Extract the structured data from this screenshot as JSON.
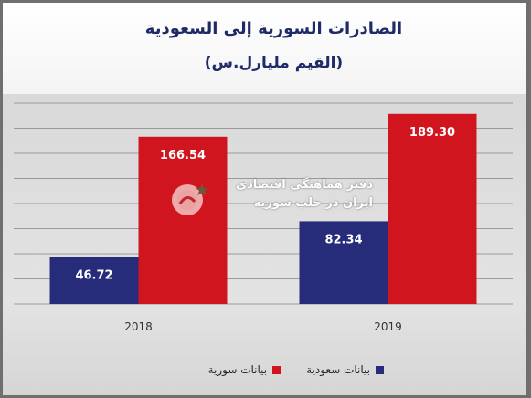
{
  "header": {
    "title": "الصادرات السورية إلى السعودية",
    "subtitle": "(القيم مليارل.س)"
  },
  "watermark": {
    "line1": "دفتر هماهنگی اقتصادی",
    "line2": "ایران در حلب سوریه"
  },
  "colors": {
    "saudi": "#262b7a",
    "syria": "#d0151f",
    "title": "#1f2a68"
  },
  "chart_data": {
    "type": "bar",
    "title": "الصادرات السورية إلى السعودية",
    "subtitle": "(القيم مليارل.س)",
    "categories": [
      "2018",
      "2019"
    ],
    "series": [
      {
        "name": "بيانات سعودية",
        "values": [
          46.72,
          82.34
        ],
        "labels": [
          "46.72",
          "82.34"
        ]
      },
      {
        "name": "بيانات سورية",
        "values": [
          166.54,
          189.3
        ],
        "labels": [
          "166.54",
          "189.30"
        ]
      }
    ],
    "ylim": [
      0,
      200
    ],
    "grid": true,
    "legend_position": "bottom"
  }
}
